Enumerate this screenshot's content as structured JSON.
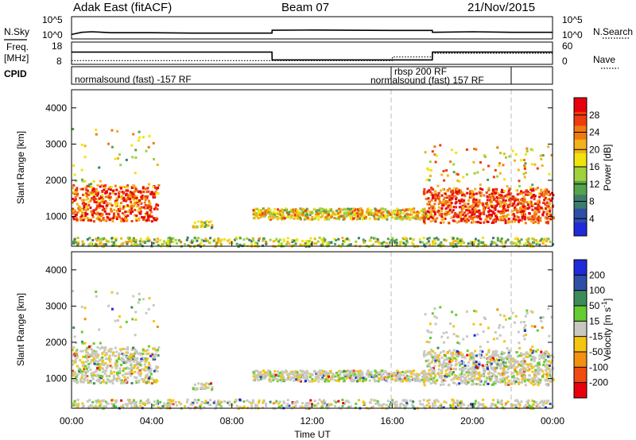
{
  "header": {
    "station": "Adak East (fitACF)",
    "beam": "Beam 07",
    "date": "21/Nov/2015"
  },
  "strip_labels": {
    "nsky": "N.Sky",
    "freq_line1": "Freq.",
    "freq_line2": "[MHz]",
    "cpid": "CPID",
    "nsearch": "N.Search",
    "nave": "Nave"
  },
  "strip_ticks": {
    "noise_top": "10^5",
    "noise_bottom": "10^0",
    "freq_top": "18",
    "freq_bottom": "8",
    "nave_top": "60",
    "nave_bottom": "0"
  },
  "cpid_labels": {
    "left": "normalsound (fast) -157 RF",
    "mid_top": "rbsp 200 RF",
    "mid_bottom": "normalsound (fast) 157 RF"
  },
  "colors": {
    "power": [
      "#1f2bd9",
      "#2f4fa6",
      "#3c7c6c",
      "#55a34a",
      "#9ed13a",
      "#f0e40c",
      "#f3b21a",
      "#f07a10",
      "#ee3b10",
      "#e8000c"
    ],
    "velocity": [
      "#e8000c",
      "#f04b10",
      "#f3900f",
      "#f5c50f",
      "#c8c8c0",
      "#66cc33",
      "#3c8c5a",
      "#2f4fa6",
      "#1f2bd9"
    ]
  },
  "chart_data": [
    {
      "type": "heatmap",
      "title": "",
      "xlabel": "",
      "ylabel": "Slant Range [km]",
      "xlim": [
        0,
        24
      ],
      "ylim": [
        180,
        4500
      ],
      "yticks": [
        "1000",
        "2000",
        "3000",
        "4000"
      ],
      "colorbar_label": "Power [dB]",
      "colorbar_ticks": [
        "4",
        "8",
        "12",
        "16",
        "20",
        "24",
        "28"
      ],
      "colorbar_range": [
        0,
        32
      ]
    },
    {
      "type": "heatmap",
      "title": "",
      "xlabel": "Time UT",
      "ylabel": "Slant Range [km]",
      "xlim": [
        0,
        24
      ],
      "ylim": [
        180,
        4500
      ],
      "xticks": [
        "00:00",
        "04:00",
        "08:00",
        "12:00",
        "16:00",
        "20:00",
        "00:00"
      ],
      "yticks": [
        "1000",
        "2000",
        "3000",
        "4000"
      ],
      "colorbar_label": "Velocity [m s^-1]",
      "colorbar_ticks": [
        "200",
        "100",
        "50",
        "15",
        "-15",
        "-50",
        "-100",
        "-200"
      ]
    },
    {
      "type": "line",
      "title": "",
      "series": [
        {
          "name": "N.Sky",
          "x": [
            0,
            0.5,
            1,
            2,
            4,
            6,
            8,
            10,
            10.01,
            12,
            14,
            16,
            18,
            18.01,
            20,
            22,
            24
          ],
          "y": [
            10,
            30,
            40,
            25,
            25,
            20,
            20,
            20,
            90,
            100,
            90,
            80,
            80,
            30,
            40,
            30,
            30
          ]
        },
        {
          "name": "Freq. [MHz]",
          "x": [
            0,
            10,
            10.01,
            18,
            18.01,
            24
          ],
          "y": [
            13.5,
            13.5,
            10,
            10,
            13.5,
            13.5
          ]
        },
        {
          "name": "Nave",
          "x": [
            0,
            16,
            16.01,
            18,
            18.01,
            24
          ],
          "y": [
            10,
            10,
            20,
            20,
            30,
            30
          ]
        }
      ]
    }
  ]
}
